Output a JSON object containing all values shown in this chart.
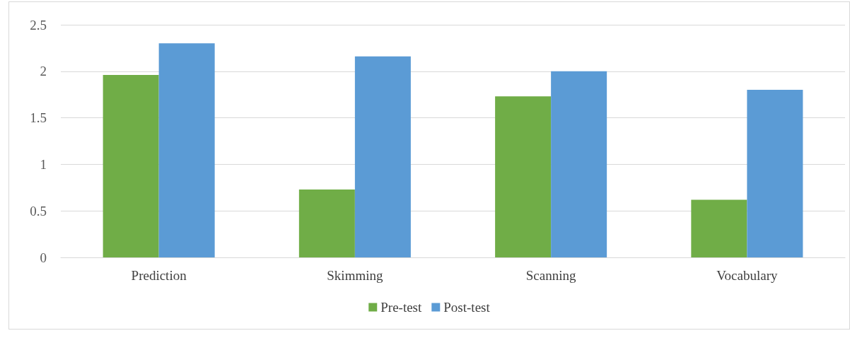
{
  "chart_data": {
    "type": "bar",
    "categories": [
      "Prediction",
      "Skimming",
      "Scanning",
      "Vocabulary"
    ],
    "series": [
      {
        "name": "Pre-test",
        "color": "#70ad47",
        "values": [
          1.96,
          0.73,
          1.73,
          0.62
        ]
      },
      {
        "name": "Post-test",
        "color": "#5b9bd5",
        "values": [
          2.3,
          2.16,
          2.0,
          1.8
        ]
      }
    ],
    "ylim": [
      0,
      2.5
    ],
    "yticks": [
      0,
      0.5,
      1,
      1.5,
      2,
      2.5
    ],
    "grid": "y",
    "legend": "bottom"
  }
}
